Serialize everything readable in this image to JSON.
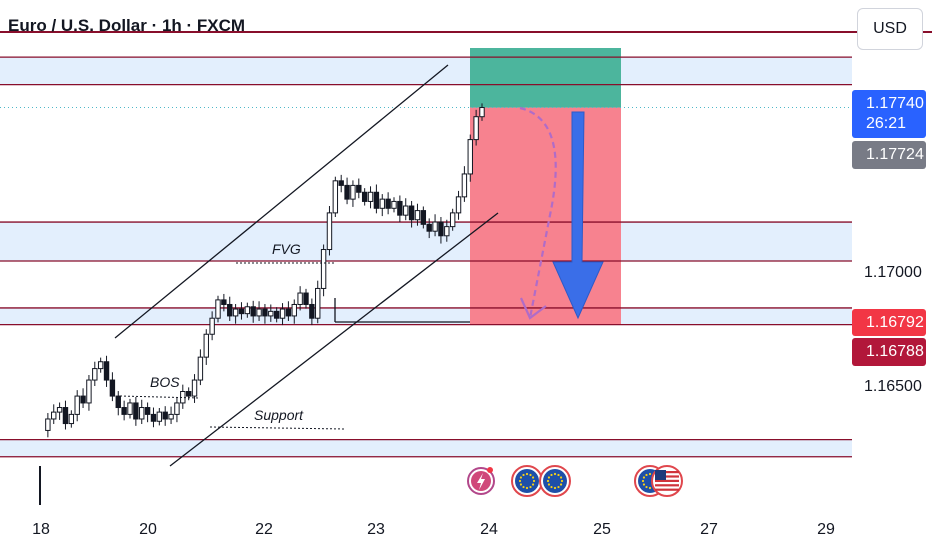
{
  "header": {
    "title": "Euro / U.S. Dollar · 1h · FXCM",
    "currency_label": "USD"
  },
  "price_axis": {
    "ticks": [
      "1.17000",
      "1.16500"
    ],
    "current_price": "1.17740",
    "countdown": "26:21",
    "grey_tag": "1.17724",
    "red_tag_1": "1.16792",
    "red_tag_2": "1.16788"
  },
  "time_axis": {
    "ticks": [
      "18",
      "20",
      "22",
      "23",
      "24",
      "25",
      "27",
      "29"
    ]
  },
  "annotations": {
    "fvg": "FVG",
    "bos": "BOS",
    "support": "Support"
  },
  "colors": {
    "candle": "#131722",
    "level_line": "#880e2b",
    "zone_fill": "#e3effd",
    "target_zone": "#4cb59d",
    "stop_zone": "#f7828f",
    "arrow_blue": "#3a6ee8",
    "dashed_arrow": "#b06cc8",
    "price_tag_blue": "#2962ff",
    "price_tag_grey": "#787b86",
    "price_tag_red": "#f23645",
    "price_tag_darkred": "#b2173a"
  },
  "event_icons": [
    "flash-event-icon",
    "eu-flag-icon",
    "eu-flag-icon",
    "eu-flag-icon",
    "us-flag-icon"
  ],
  "chart_data": {
    "type": "candlestick",
    "title": "Euro / U.S. Dollar · 1h · FXCM",
    "ylim": [
      1.1625,
      1.18
    ],
    "price_ticks": [
      1.17,
      1.165
    ],
    "x_ticks": [
      "18",
      "20",
      "22",
      "23",
      "24",
      "25",
      "27",
      "29"
    ],
    "last_price": 1.1774,
    "close_path": [
      1.1633,
      1.1638,
      1.1641,
      1.1643,
      1.1636,
      1.164,
      1.1648,
      1.1645,
      1.1655,
      1.166,
      1.1663,
      1.1655,
      1.1648,
      1.1643,
      1.164,
      1.1645,
      1.1638,
      1.1643,
      1.164,
      1.1637,
      1.1641,
      1.1638,
      1.164,
      1.1645,
      1.165,
      1.1648,
      1.1655,
      1.1665,
      1.1675,
      1.1682,
      1.169,
      1.1688,
      1.1683,
      1.1686,
      1.1684,
      1.1687,
      1.1683,
      1.1686,
      1.1683,
      1.1685,
      1.1682,
      1.1686,
      1.1683,
      1.1688,
      1.1693,
      1.1688,
      1.1682,
      1.1695,
      1.1712,
      1.1728,
      1.1742,
      1.174,
      1.1734,
      1.174,
      1.1737,
      1.1733,
      1.1737,
      1.173,
      1.1734,
      1.173,
      1.1733,
      1.1727,
      1.1731,
      1.1725,
      1.1729,
      1.1723,
      1.172,
      1.1724,
      1.1718,
      1.1722,
      1.1728,
      1.1735,
      1.1745,
      1.176,
      1.177,
      1.1774
    ],
    "levels": [
      1.1796,
      1.1784,
      1.1724,
      1.1707,
      1.16865,
      1.16792,
      1.1629,
      1.16215
    ],
    "zones": [
      [
        1.1784,
        1.1796
      ],
      [
        1.1707,
        1.1724
      ],
      [
        1.16792,
        1.16865
      ],
      [
        1.16215,
        1.1629
      ]
    ],
    "position": {
      "type": "short",
      "entry": 1.1774,
      "target": 1.16792,
      "stop": 1.1795
    },
    "annotations": [
      "FVG",
      "BOS",
      "Support"
    ]
  }
}
